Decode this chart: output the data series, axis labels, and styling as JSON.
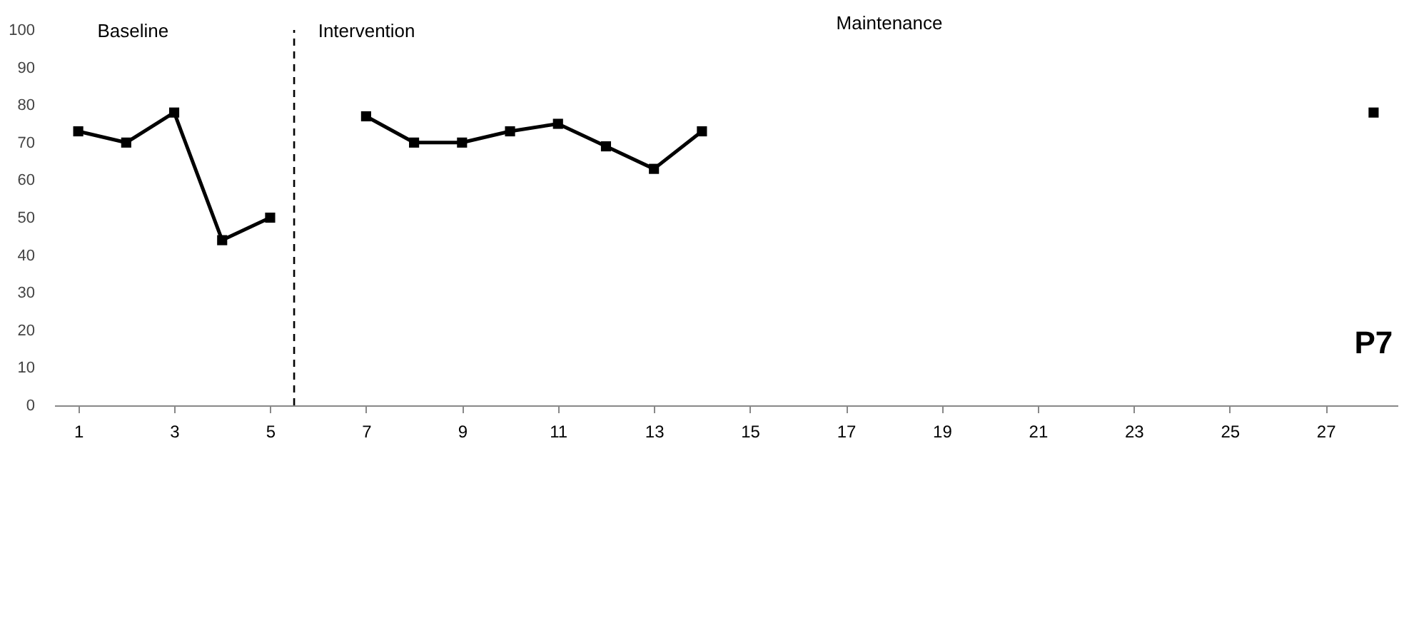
{
  "chart_data": {
    "type": "line",
    "series": [
      {
        "color": "#000000",
        "x": [
          1,
          2,
          3,
          4,
          5
        ],
        "values": [
          73,
          70,
          78,
          44,
          50
        ]
      },
      {
        "color": "#000000",
        "x": [
          7,
          8,
          9,
          10,
          11,
          12,
          13,
          14
        ],
        "values": [
          77,
          70,
          70,
          73,
          75,
          69,
          63,
          73
        ]
      },
      {
        "color": "#000000",
        "x": [
          28
        ],
        "values": [
          78
        ]
      }
    ],
    "xlim": [
      0.5,
      28.5
    ],
    "xticks": [
      1,
      3,
      5,
      7,
      9,
      11,
      13,
      15,
      17,
      19,
      21,
      23,
      25,
      27
    ],
    "ylim": [
      0,
      100
    ],
    "yticks": [
      0,
      10,
      20,
      30,
      40,
      50,
      60,
      70,
      80,
      90,
      100
    ],
    "ref_lines": [
      {
        "axis": "x",
        "value": 5.5,
        "color": "#000000",
        "line_style": "dashed"
      }
    ],
    "annotations": [
      "Baseline",
      "Intervention",
      "Maintenance",
      "P7"
    ],
    "marker": "square",
    "line_style": "solid",
    "grid": false
  }
}
